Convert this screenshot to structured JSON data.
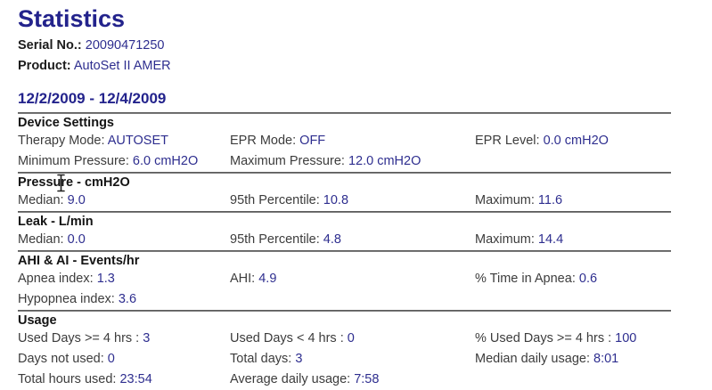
{
  "header": {
    "title": "Statistics",
    "serial": {
      "label": "Serial  No.:",
      "value": "20090471250"
    },
    "product": {
      "label": "Product:",
      "value": "AutoSet II AMER"
    },
    "date_range": "12/2/2009 - 12/4/2009"
  },
  "colors": {
    "heading_navy": "#23238c",
    "value_navy": "#2e2e8f",
    "label_gray": "#3c3c3c",
    "rule_gray": "#4c4c4c"
  },
  "icons": {
    "cursor": "text-ibeam-cursor"
  },
  "sections": [
    {
      "title": "Device Settings",
      "rows": [
        [
          {
            "label": "Therapy Mode:",
            "value": "AUTOSET"
          },
          {
            "label": "EPR Mode:",
            "value": "OFF"
          },
          {
            "label": "EPR Level:",
            "value": "0.0 cmH2O"
          }
        ],
        [
          {
            "label": "Minimum Pressure:",
            "value": "6.0 cmH2O"
          },
          {
            "label": "Maximum Pressure:",
            "value": "12.0 cmH2O"
          },
          null
        ]
      ]
    },
    {
      "title": "Pressure - cmH2O",
      "rows": [
        [
          {
            "label": "Median:",
            "value": "9.0"
          },
          {
            "label": "95th Percentile:",
            "value": "10.8"
          },
          {
            "label": "Maximum:",
            "value": "11.6"
          }
        ]
      ]
    },
    {
      "title": "Leak - L/min",
      "rows": [
        [
          {
            "label": "Median:",
            "value": "0.0"
          },
          {
            "label": "95th Percentile:",
            "value": "4.8"
          },
          {
            "label": "Maximum:",
            "value": "14.4"
          }
        ]
      ]
    },
    {
      "title": "AHI & AI - Events/hr",
      "rows": [
        [
          {
            "label": "Apnea index:",
            "value": "1.3"
          },
          {
            "label": "AHI:",
            "value": "4.9"
          },
          {
            "label": "% Time in Apnea:",
            "value": "0.6"
          }
        ],
        [
          {
            "label": "Hypopnea index:",
            "value": "3.6"
          },
          null,
          null
        ]
      ]
    },
    {
      "title": "Usage",
      "rows": [
        [
          {
            "label": "Used Days >= 4 hrs :",
            "value": "3"
          },
          {
            "label": "Used Days < 4 hrs :",
            "value": "0"
          },
          {
            "label": "% Used Days >= 4 hrs :",
            "value": "100"
          }
        ],
        [
          {
            "label": "Days not used:",
            "value": "0"
          },
          {
            "label": "Total days:",
            "value": "3"
          },
          {
            "label": "Median daily usage:",
            "value": "8:01"
          }
        ],
        [
          {
            "label": "Total hours used:",
            "value": "23:54"
          },
          {
            "label": "Average daily usage:",
            "value": "7:58"
          },
          null
        ]
      ]
    }
  ]
}
